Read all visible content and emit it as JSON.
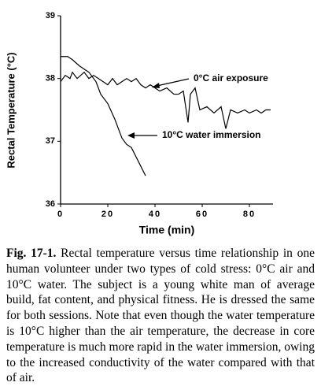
{
  "chart_data": {
    "type": "line",
    "x_label": "Time (min)",
    "y_label": "Rectal Temperature (°C)",
    "xlim": [
      0,
      90
    ],
    "xticks": [
      0,
      20,
      40,
      60,
      80
    ],
    "ylim": [
      36,
      39
    ],
    "yticks": [
      36,
      37,
      38,
      39
    ],
    "series": [
      {
        "name": "0°C air exposure",
        "color": "#000000",
        "x": [
          0,
          2,
          4,
          5,
          7,
          10,
          12,
          14,
          16,
          18,
          20,
          22,
          24,
          26,
          28,
          30,
          32,
          34,
          36,
          38,
          40,
          42,
          45,
          48,
          50,
          52,
          54,
          55,
          57,
          59,
          62,
          65,
          68,
          70,
          72,
          75,
          78,
          80,
          83,
          85,
          87,
          89
        ],
        "values": [
          37.95,
          38.05,
          38.0,
          38.1,
          38.0,
          38.1,
          38.0,
          38.05,
          38.0,
          37.95,
          37.9,
          38.0,
          37.9,
          37.95,
          38.0,
          37.95,
          38.0,
          37.9,
          37.85,
          37.9,
          37.85,
          37.8,
          37.85,
          37.75,
          37.75,
          37.8,
          37.3,
          37.75,
          37.85,
          37.5,
          37.55,
          37.45,
          37.55,
          37.2,
          37.5,
          37.45,
          37.5,
          37.45,
          37.5,
          37.45,
          37.5,
          37.5
        ]
      },
      {
        "name": "10°C water immersion",
        "color": "#000000",
        "x": [
          0,
          3,
          5,
          8,
          10,
          12,
          15,
          17,
          20,
          23,
          26,
          28,
          30,
          32,
          34,
          36
        ],
        "values": [
          38.35,
          38.35,
          38.3,
          38.2,
          38.15,
          38.1,
          37.95,
          37.75,
          37.6,
          37.35,
          37.05,
          36.95,
          36.9,
          36.75,
          36.6,
          36.45
        ]
      }
    ]
  },
  "caption": {
    "label": "Fig. 17-1.",
    "text": " Rectal temperature versus time relationship in one human volunteer under two types of cold stress: 0°C air and 10°C water. The subject is a young white man of average build, fat content, and physical fitness. He is dressed the same for both sessions. Note that even though the water temperature is 10°C higher than the air temperature, the decrease in core temperature is much more rapid in the water immersion, owing to the increased conductivity of the water compared with that of air."
  }
}
